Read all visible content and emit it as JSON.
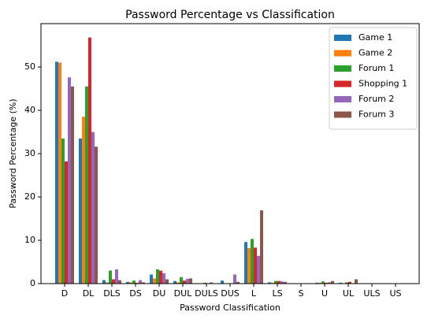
{
  "chart_data": {
    "type": "bar",
    "title": "Password Percentage vs Classification",
    "x_label": "Password Classification",
    "y_label": "Password Percentage (%)",
    "categories": [
      "D",
      "DL",
      "DLS",
      "DS",
      "DU",
      "DUL",
      "DULS",
      "DUS",
      "L",
      "LS",
      "S",
      "U",
      "UL",
      "ULS",
      "US"
    ],
    "series": [
      {
        "name": "Game 1",
        "color": "#1f77b4",
        "values": [
          51.2,
          33.5,
          0.8,
          0.4,
          2.1,
          0.6,
          0.1,
          0.7,
          9.6,
          0.3,
          0,
          0.2,
          0.2,
          0,
          0
        ]
      },
      {
        "name": "Game 2",
        "color": "#ff7f0e",
        "values": [
          51,
          38.5,
          0.3,
          0.3,
          1.2,
          0.3,
          0.1,
          0.1,
          8.2,
          0.2,
          0,
          0.2,
          0.1,
          0,
          0
        ]
      },
      {
        "name": "Forum 1",
        "color": "#2ca02c",
        "values": [
          33.5,
          45.5,
          3.0,
          0.7,
          3.3,
          1.5,
          0.2,
          0.1,
          10.3,
          0.6,
          0,
          0.5,
          0.3,
          0.1,
          0
        ]
      },
      {
        "name": "Shopping 1",
        "color": "#d62728",
        "values": [
          28.2,
          56.8,
          1.0,
          0.2,
          3.0,
          0.7,
          0.1,
          0.1,
          8.3,
          0.6,
          0,
          0.2,
          0.4,
          0.1,
          0
        ]
      },
      {
        "name": "Forum 2",
        "color": "#9467bd",
        "values": [
          47.6,
          35,
          3.3,
          0.8,
          2.4,
          1.1,
          0.3,
          2.1,
          6.4,
          0.5,
          0,
          0.3,
          0.1,
          0.1,
          0
        ]
      },
      {
        "name": "Forum 3",
        "color": "#8c564b",
        "values": [
          45.5,
          31.6,
          0.8,
          0.3,
          1.0,
          1.2,
          0.1,
          0.4,
          16.9,
          0.4,
          0,
          0.6,
          1.0,
          0,
          0
        ]
      }
    ],
    "ylim": [
      0,
      60
    ],
    "yticks": [
      0,
      10,
      20,
      30,
      40,
      50
    ],
    "grid": false,
    "legend": "upper-right"
  }
}
